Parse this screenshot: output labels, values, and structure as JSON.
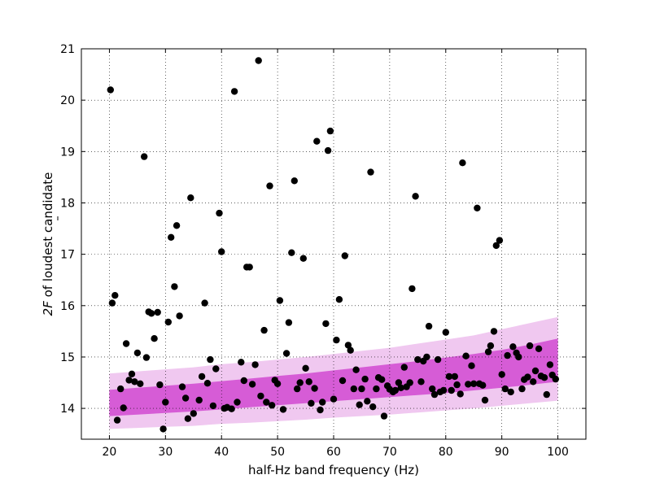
{
  "chart_data": {
    "type": "scatter",
    "xlabel": "half-Hz band frequency (Hz)",
    "ylabel_main": "2F",
    "ylabel_rest": " of loudest candidate",
    "xlim": [
      15,
      105
    ],
    "ylim": [
      13.4,
      21
    ],
    "xticks": [
      "20",
      "30",
      "40",
      "50",
      "60",
      "70",
      "80",
      "90",
      "100"
    ],
    "yticks": [
      "14",
      "15",
      "16",
      "17",
      "18",
      "19",
      "20",
      "21"
    ],
    "grid": true,
    "colors": {
      "points": "#000000",
      "band_outer": "#f0c8f0",
      "band_inner": "#d65cd6"
    },
    "band_outer": {
      "x": [
        20,
        25,
        30,
        35,
        40,
        45,
        50,
        55,
        60,
        65,
        70,
        75,
        80,
        85,
        90,
        95,
        100
      ],
      "upper": [
        14.68,
        14.72,
        14.76,
        14.8,
        14.86,
        14.9,
        14.95,
        15.0,
        15.06,
        15.12,
        15.18,
        15.26,
        15.34,
        15.42,
        15.54,
        15.66,
        15.78
      ],
      "lower": [
        13.6,
        13.62,
        13.64,
        13.66,
        13.7,
        13.72,
        13.75,
        13.78,
        13.82,
        13.85,
        13.88,
        13.92,
        13.96,
        14.0,
        14.05,
        14.1,
        14.15
      ]
    },
    "band_inner": {
      "x": [
        20,
        25,
        30,
        35,
        40,
        45,
        50,
        55,
        60,
        65,
        70,
        75,
        80,
        85,
        90,
        95,
        100
      ],
      "upper": [
        14.36,
        14.4,
        14.44,
        14.48,
        14.53,
        14.58,
        14.63,
        14.68,
        14.74,
        14.8,
        14.86,
        14.92,
        14.99,
        15.06,
        15.14,
        15.24,
        15.36
      ],
      "lower": [
        13.85,
        13.88,
        13.91,
        13.94,
        13.98,
        14.02,
        14.06,
        14.1,
        14.14,
        14.18,
        14.22,
        14.26,
        14.3,
        14.35,
        14.4,
        14.46,
        14.52
      ]
    },
    "points": [
      [
        20.2,
        20.2
      ],
      [
        20.5,
        16.05
      ],
      [
        21.0,
        16.2
      ],
      [
        21.4,
        13.77
      ],
      [
        22.0,
        14.38
      ],
      [
        22.5,
        14.01
      ],
      [
        23.0,
        15.26
      ],
      [
        23.5,
        14.55
      ],
      [
        24.0,
        14.67
      ],
      [
        24.5,
        14.52
      ],
      [
        25.0,
        15.08
      ],
      [
        25.5,
        14.48
      ],
      [
        26.2,
        18.9
      ],
      [
        26.6,
        14.99
      ],
      [
        27.0,
        15.88
      ],
      [
        27.5,
        15.85
      ],
      [
        28.0,
        15.36
      ],
      [
        28.6,
        15.87
      ],
      [
        29.0,
        14.46
      ],
      [
        29.6,
        13.6
      ],
      [
        30.0,
        14.12
      ],
      [
        30.5,
        15.68
      ],
      [
        31.0,
        17.33
      ],
      [
        31.6,
        16.37
      ],
      [
        32.0,
        17.56
      ],
      [
        32.5,
        15.8
      ],
      [
        33.0,
        14.42
      ],
      [
        33.6,
        14.2
      ],
      [
        34.0,
        13.8
      ],
      [
        34.5,
        18.1
      ],
      [
        35.0,
        13.9
      ],
      [
        36.0,
        14.16
      ],
      [
        36.5,
        14.62
      ],
      [
        37.0,
        16.05
      ],
      [
        37.5,
        14.49
      ],
      [
        38.0,
        14.95
      ],
      [
        38.5,
        14.05
      ],
      [
        39.0,
        14.77
      ],
      [
        39.6,
        17.8
      ],
      [
        40.0,
        17.05
      ],
      [
        40.5,
        14.0
      ],
      [
        41.0,
        14.02
      ],
      [
        41.8,
        13.99
      ],
      [
        42.3,
        20.17
      ],
      [
        42.8,
        14.12
      ],
      [
        43.5,
        14.9
      ],
      [
        44.0,
        14.54
      ],
      [
        44.5,
        16.75
      ],
      [
        45.0,
        16.75
      ],
      [
        45.5,
        14.47
      ],
      [
        46.0,
        14.85
      ],
      [
        46.6,
        20.77
      ],
      [
        47.0,
        14.24
      ],
      [
        47.6,
        15.52
      ],
      [
        48.0,
        14.12
      ],
      [
        48.6,
        18.33
      ],
      [
        49.0,
        14.06
      ],
      [
        49.5,
        14.55
      ],
      [
        50.0,
        14.48
      ],
      [
        50.4,
        16.1
      ],
      [
        51.0,
        13.98
      ],
      [
        51.6,
        15.07
      ],
      [
        52.0,
        15.67
      ],
      [
        52.5,
        17.03
      ],
      [
        53.0,
        18.43
      ],
      [
        53.5,
        14.38
      ],
      [
        54.0,
        14.5
      ],
      [
        54.6,
        16.92
      ],
      [
        55.0,
        14.78
      ],
      [
        55.6,
        14.52
      ],
      [
        56.0,
        14.1
      ],
      [
        56.6,
        14.39
      ],
      [
        57.0,
        19.2
      ],
      [
        57.6,
        13.97
      ],
      [
        58.0,
        14.12
      ],
      [
        58.6,
        15.65
      ],
      [
        59.0,
        19.02
      ],
      [
        59.4,
        19.4
      ],
      [
        60.0,
        14.18
      ],
      [
        60.5,
        15.33
      ],
      [
        61.0,
        16.12
      ],
      [
        61.6,
        14.54
      ],
      [
        62.0,
        16.97
      ],
      [
        62.6,
        15.23
      ],
      [
        63.0,
        15.13
      ],
      [
        63.6,
        14.38
      ],
      [
        64.0,
        14.75
      ],
      [
        64.6,
        14.07
      ],
      [
        65.0,
        14.38
      ],
      [
        65.6,
        14.57
      ],
      [
        66.0,
        14.14
      ],
      [
        66.6,
        18.6
      ],
      [
        67.0,
        14.03
      ],
      [
        67.6,
        14.38
      ],
      [
        68.0,
        14.6
      ],
      [
        68.6,
        14.56
      ],
      [
        69.0,
        13.85
      ],
      [
        69.6,
        14.44
      ],
      [
        70.0,
        14.37
      ],
      [
        70.6,
        14.32
      ],
      [
        71.0,
        14.35
      ],
      [
        71.6,
        14.5
      ],
      [
        72.0,
        14.4
      ],
      [
        72.6,
        14.8
      ],
      [
        73.0,
        14.42
      ],
      [
        73.6,
        14.5
      ],
      [
        74.0,
        16.33
      ],
      [
        74.6,
        18.13
      ],
      [
        75.0,
        14.95
      ],
      [
        75.6,
        14.52
      ],
      [
        76.0,
        14.92
      ],
      [
        76.6,
        15.0
      ],
      [
        77.0,
        15.6
      ],
      [
        77.6,
        14.38
      ],
      [
        78.0,
        14.27
      ],
      [
        78.6,
        14.95
      ],
      [
        79.0,
        14.32
      ],
      [
        79.6,
        14.35
      ],
      [
        80.0,
        15.48
      ],
      [
        80.6,
        14.62
      ],
      [
        81.0,
        14.35
      ],
      [
        81.6,
        14.62
      ],
      [
        82.0,
        14.46
      ],
      [
        82.6,
        14.28
      ],
      [
        83.0,
        18.78
      ],
      [
        83.6,
        15.02
      ],
      [
        84.0,
        14.47
      ],
      [
        84.6,
        14.83
      ],
      [
        85.0,
        14.48
      ],
      [
        85.6,
        17.9
      ],
      [
        86.0,
        14.48
      ],
      [
        86.6,
        14.45
      ],
      [
        87.0,
        14.16
      ],
      [
        87.6,
        15.1
      ],
      [
        88.0,
        15.22
      ],
      [
        88.6,
        15.5
      ],
      [
        89.0,
        17.17
      ],
      [
        89.6,
        17.27
      ],
      [
        90.0,
        14.66
      ],
      [
        90.6,
        14.38
      ],
      [
        91.0,
        15.03
      ],
      [
        91.6,
        14.32
      ],
      [
        92.0,
        15.2
      ],
      [
        92.6,
        15.08
      ],
      [
        93.0,
        15.0
      ],
      [
        93.6,
        14.38
      ],
      [
        94.0,
        14.56
      ],
      [
        94.6,
        14.61
      ],
      [
        95.0,
        15.22
      ],
      [
        95.6,
        14.52
      ],
      [
        96.0,
        14.73
      ],
      [
        96.6,
        15.16
      ],
      [
        97.0,
        14.63
      ],
      [
        97.6,
        14.6
      ],
      [
        98.0,
        14.27
      ],
      [
        98.6,
        14.85
      ],
      [
        99.0,
        14.65
      ],
      [
        99.6,
        14.57
      ]
    ]
  }
}
